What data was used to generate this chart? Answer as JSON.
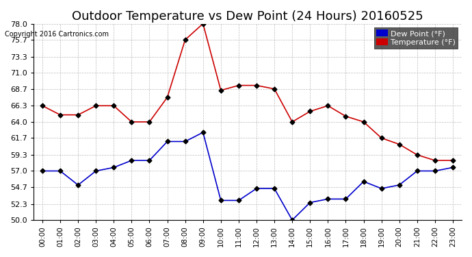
{
  "title": "Outdoor Temperature vs Dew Point (24 Hours) 20160525",
  "copyright": "Copyright 2016 Cartronics.com",
  "hours": [
    "00:00",
    "01:00",
    "02:00",
    "03:00",
    "04:00",
    "05:00",
    "06:00",
    "07:00",
    "08:00",
    "09:00",
    "10:00",
    "11:00",
    "12:00",
    "13:00",
    "14:00",
    "15:00",
    "16:00",
    "17:00",
    "18:00",
    "19:00",
    "20:00",
    "21:00",
    "22:00",
    "23:00"
  ],
  "temperature": [
    66.3,
    65.0,
    65.0,
    66.3,
    66.3,
    64.0,
    64.0,
    67.5,
    75.7,
    78.0,
    68.5,
    69.2,
    69.2,
    68.7,
    64.0,
    65.5,
    66.3,
    64.8,
    64.0,
    61.7,
    60.8,
    59.3,
    58.5,
    58.5
  ],
  "dew_point": [
    57.0,
    57.0,
    55.0,
    57.0,
    57.5,
    58.5,
    58.5,
    61.2,
    61.2,
    62.5,
    52.8,
    52.8,
    54.5,
    54.5,
    50.0,
    52.5,
    53.0,
    53.0,
    55.5,
    54.5,
    55.0,
    57.0,
    57.0,
    57.5
  ],
  "temp_color": "#cc0000",
  "dew_color": "#0000cc",
  "ylim": [
    50.0,
    78.0
  ],
  "yticks": [
    50.0,
    52.3,
    54.7,
    57.0,
    59.3,
    61.7,
    64.0,
    66.3,
    68.7,
    71.0,
    73.3,
    75.7,
    78.0
  ],
  "bg_color": "#ffffff",
  "grid_color": "#bbbbbb",
  "title_fontsize": 13,
  "legend_dew_label": "Dew Point (°F)",
  "legend_temp_label": "Temperature (°F)"
}
